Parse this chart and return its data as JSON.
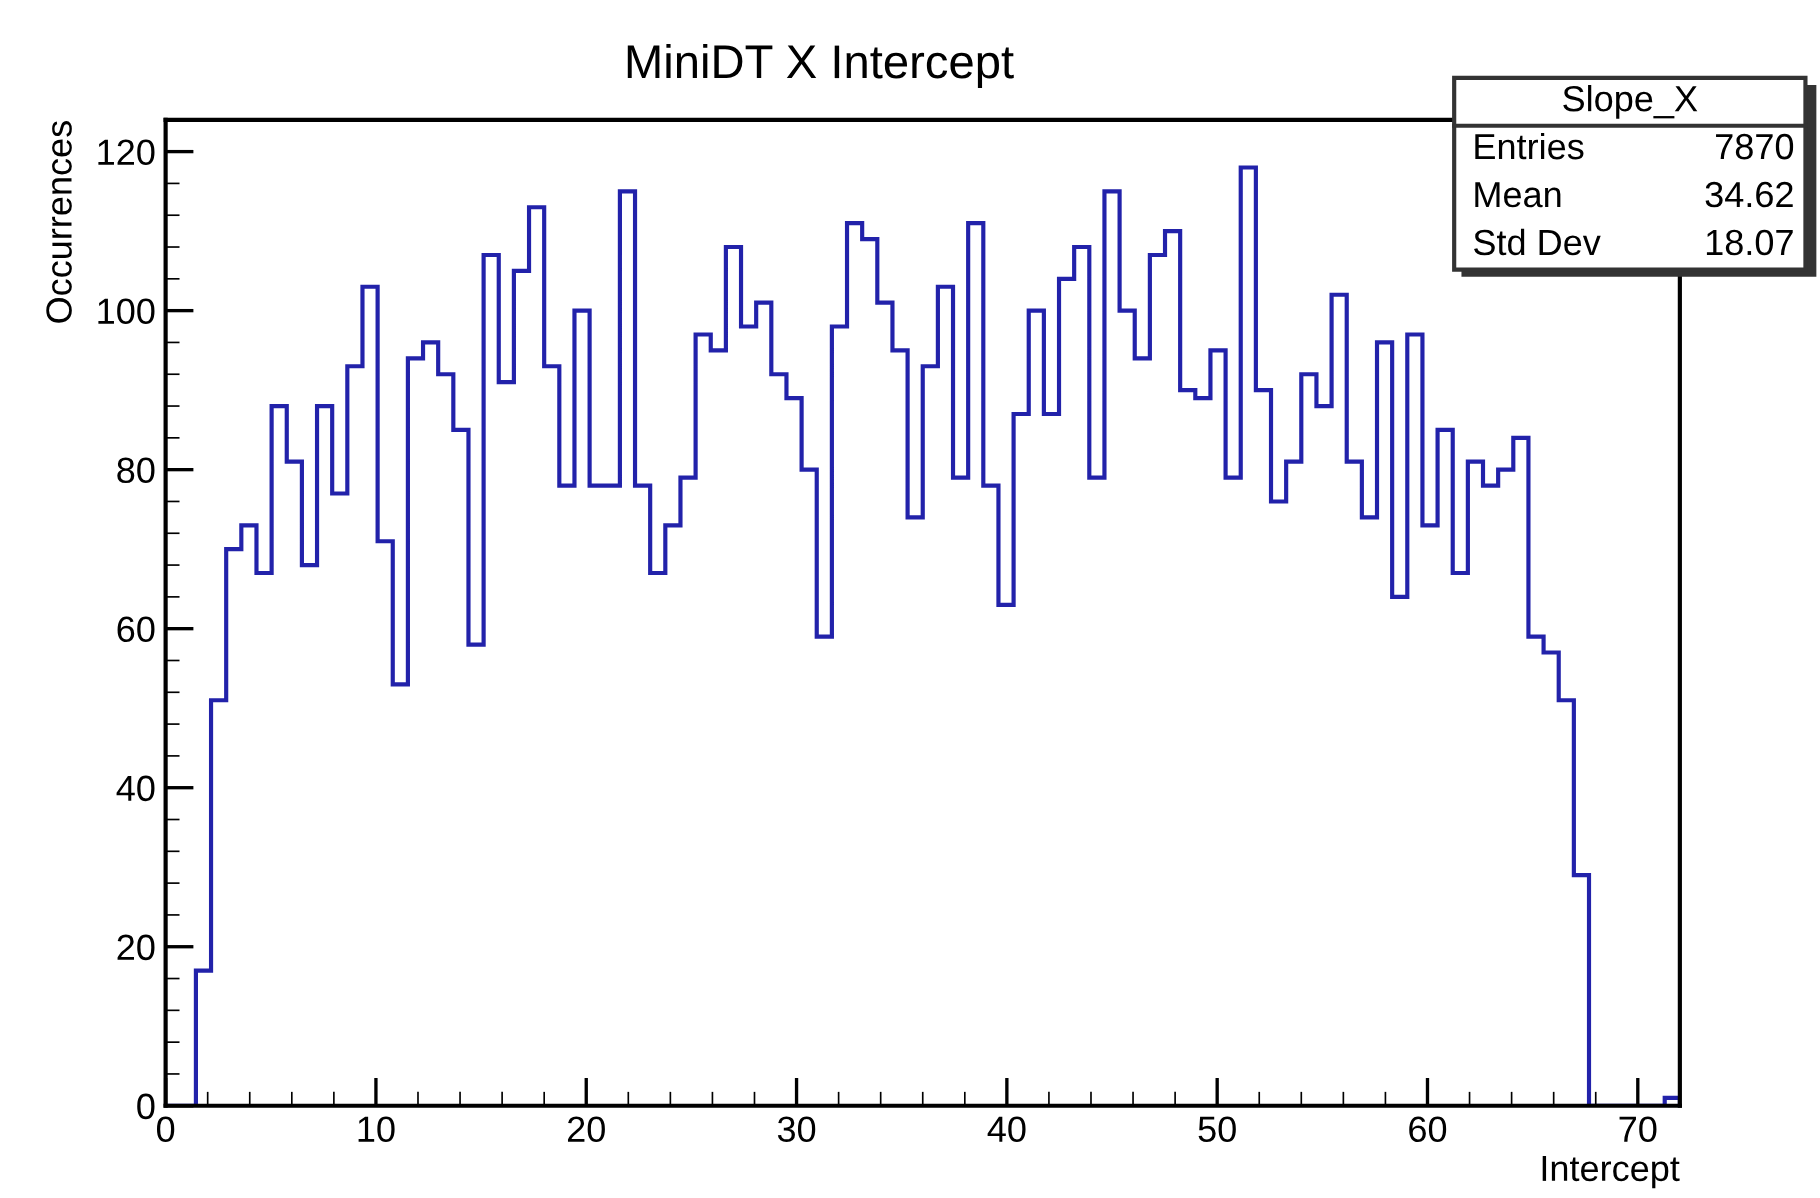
{
  "chart_data": {
    "type": "histogram",
    "title": "MiniDT X Intercept",
    "xlabel": "Intercept",
    "ylabel": "Occurrences",
    "bins": [
      0,
      0.72,
      1.44,
      2.16,
      2.88,
      3.6,
      4.32,
      5.04,
      5.76,
      6.48,
      7.2,
      7.92,
      8.64,
      9.36,
      10.08,
      10.8,
      11.52,
      12.24,
      12.96,
      13.68,
      14.4,
      15.12,
      15.84,
      16.56,
      17.28,
      18,
      18.72,
      19.44,
      20.16,
      20.88,
      21.6,
      22.32,
      23.04,
      23.76,
      24.48,
      25.2,
      25.92,
      26.64,
      27.36,
      28.08,
      28.8,
      29.52,
      30.24,
      30.96,
      31.68,
      32.4,
      33.12,
      33.84,
      34.56,
      35.28,
      36,
      36.72,
      37.44,
      38.16,
      38.88,
      39.6,
      40.32,
      41.04,
      41.76,
      42.48,
      43.2,
      43.92,
      44.64,
      45.36,
      46.08,
      46.8,
      47.52,
      48.24,
      48.96,
      49.68,
      50.4,
      51.12,
      51.84,
      52.56,
      53.28,
      54,
      54.72,
      55.44,
      56.16,
      56.88,
      57.6,
      58.32,
      59.04,
      59.76,
      60.48,
      61.2,
      61.92,
      62.64,
      63.36,
      64.08,
      64.8,
      65.52,
      66.24,
      66.96,
      67.68,
      68.4,
      69.12,
      69.84,
      70.56,
      71.28,
      72
    ],
    "values": [
      0,
      0,
      17,
      51,
      70,
      73,
      67,
      88,
      81,
      68,
      88,
      77,
      93,
      103,
      71,
      53,
      94,
      96,
      92,
      85,
      58,
      107,
      91,
      105,
      113,
      93,
      78,
      100,
      78,
      78,
      115,
      78,
      67,
      73,
      79,
      97,
      95,
      108,
      98,
      101,
      92,
      89,
      80,
      59,
      98,
      111,
      109,
      101,
      95,
      74,
      93,
      103,
      79,
      111,
      78,
      63,
      87,
      100,
      87,
      104,
      108,
      79,
      115,
      100,
      94,
      107,
      110,
      90,
      89,
      95,
      79,
      118,
      90,
      76,
      81,
      92,
      88,
      102,
      81,
      74,
      96,
      64,
      97,
      73,
      85,
      67,
      81,
      78,
      80,
      84,
      59,
      57,
      51,
      29,
      0,
      0,
      0,
      0,
      0,
      1
    ],
    "color": "#2222aa",
    "xlim": [
      0,
      72
    ],
    "ylim": [
      0,
      124
    ],
    "xticks": [
      0,
      10,
      20,
      30,
      40,
      50,
      60,
      70
    ],
    "yticks": [
      0,
      20,
      40,
      60,
      80,
      100,
      120
    ],
    "grid": false,
    "legend": false,
    "annotations": [
      "Slope_X",
      "Entries",
      "7870",
      "Mean",
      "34.62",
      "Std Dev",
      "18.07"
    ]
  }
}
